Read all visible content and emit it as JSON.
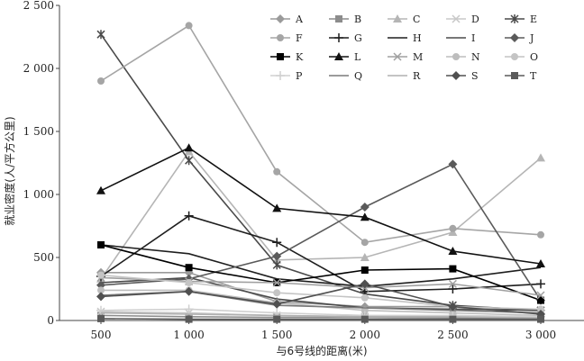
{
  "chart_data": {
    "type": "line",
    "title": "",
    "xlabel": "与6号线的距离(米)",
    "ylabel": "就业密度(人/平方公里)",
    "x": [
      500,
      1000,
      1500,
      2000,
      2500,
      3000
    ],
    "x_tick_labels": [
      "500",
      "1 000",
      "1 500",
      "2 000",
      "2 500",
      "3 000"
    ],
    "y_tick_labels": [
      "0",
      "500",
      "1 000",
      "1 500",
      "2 000",
      "2 500"
    ],
    "y_ticks": [
      0,
      500,
      1000,
      1500,
      2000,
      2500
    ],
    "ylim": [
      0,
      2500
    ],
    "grid": false,
    "legend_position": "top-right",
    "series": [
      {
        "name": "A",
        "color": "#9a9a9a",
        "marker": "diamond",
        "values": [
          380,
          380,
          150,
          110,
          110,
          80
        ]
      },
      {
        "name": "B",
        "color": "#8c8c8c",
        "marker": "square",
        "values": [
          40,
          30,
          25,
          25,
          20,
          20
        ]
      },
      {
        "name": "C",
        "color": "#b5b5b5",
        "marker": "triangle",
        "values": [
          330,
          1340,
          480,
          500,
          700,
          1290
        ]
      },
      {
        "name": "D",
        "color": "#c8c8c8",
        "marker": "x",
        "values": [
          70,
          60,
          40,
          30,
          30,
          30
        ]
      },
      {
        "name": "E",
        "color": "#4a4a4a",
        "marker": "star",
        "values": [
          2270,
          1270,
          440,
          210,
          120,
          80
        ]
      },
      {
        "name": "F",
        "color": "#a5a5a5",
        "marker": "circle",
        "values": [
          1900,
          2340,
          1180,
          620,
          730,
          680
        ]
      },
      {
        "name": "G",
        "color": "#1e1e1e",
        "marker": "plus",
        "values": [
          350,
          830,
          620,
          230,
          250,
          290
        ]
      },
      {
        "name": "H",
        "color": "#1e1e1e",
        "marker": "none",
        "values": [
          600,
          530,
          330,
          270,
          330,
          420
        ]
      },
      {
        "name": "I",
        "color": "#4a4a4a",
        "marker": "none",
        "values": [
          300,
          340,
          170,
          100,
          90,
          80
        ]
      },
      {
        "name": "J",
        "color": "#5a5a5a",
        "marker": "diamond",
        "values": [
          280,
          330,
          510,
          900,
          1240,
          160
        ]
      },
      {
        "name": "K",
        "color": "#000000",
        "marker": "square",
        "values": [
          600,
          420,
          300,
          400,
          410,
          160
        ]
      },
      {
        "name": "L",
        "color": "#111111",
        "marker": "triangle",
        "values": [
          1030,
          1370,
          890,
          820,
          550,
          450
        ]
      },
      {
        "name": "M",
        "color": "#a0a0a0",
        "marker": "x",
        "values": [
          340,
          310,
          300,
          260,
          290,
          200
        ]
      },
      {
        "name": "N",
        "color": "#bdbdbd",
        "marker": "circle",
        "values": [
          240,
          240,
          140,
          80,
          60,
          40
        ]
      },
      {
        "name": "O",
        "color": "#c4c4c4",
        "marker": "circle",
        "values": [
          360,
          300,
          220,
          180,
          110,
          90
        ]
      },
      {
        "name": "P",
        "color": "#d0d0d0",
        "marker": "plus",
        "values": [
          80,
          90,
          60,
          40,
          40,
          30
        ]
      },
      {
        "name": "Q",
        "color": "#7a7a7a",
        "marker": "none",
        "values": [
          200,
          230,
          120,
          100,
          80,
          60
        ]
      },
      {
        "name": "R",
        "color": "#b0b0b0",
        "marker": "none",
        "values": [
          60,
          50,
          40,
          30,
          30,
          20
        ]
      },
      {
        "name": "S",
        "color": "#505050",
        "marker": "diamond",
        "values": [
          190,
          230,
          130,
          290,
          110,
          50
        ]
      },
      {
        "name": "T",
        "color": "#5a5a5a",
        "marker": "square",
        "values": [
          15,
          10,
          10,
          10,
          10,
          10
        ]
      }
    ]
  }
}
